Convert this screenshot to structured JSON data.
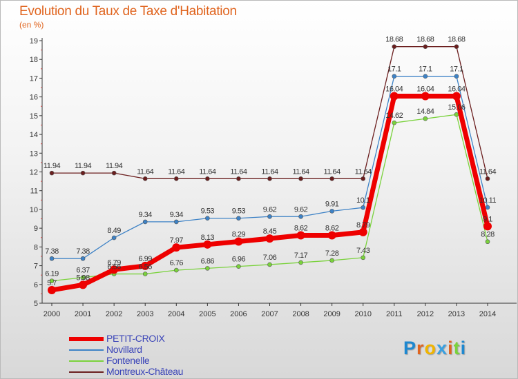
{
  "header": {
    "title": "Evolution du Taux de Taxe d'Habitation",
    "unit": "(en %)"
  },
  "colors": {
    "title": "#e0641e",
    "legend_text": "#3a44b8",
    "axis_text": "#333333"
  },
  "chart_data": {
    "type": "line",
    "title": "Evolution du Taux de Taxe d'Habitation",
    "subtitle": "(en %)",
    "xlabel": "",
    "ylabel": "",
    "x": [
      "2000",
      "2001",
      "2002",
      "2003",
      "2004",
      "2005",
      "2006",
      "2007",
      "2008",
      "2009",
      "2010",
      "2011",
      "2012",
      "2013",
      "2014"
    ],
    "ylim": [
      5,
      19
    ],
    "yticks": [
      "5",
      "6",
      "7",
      "8",
      "9",
      "10",
      "11",
      "12",
      "13",
      "14",
      "15",
      "16",
      "17",
      "18",
      "19"
    ],
    "grid": false,
    "legend_position": "bottom-left",
    "series": [
      {
        "name": "PETIT-CROIX",
        "color": "#ee0000",
        "values": [
          5.7,
          5.98,
          6.79,
          6.99,
          7.97,
          8.13,
          8.29,
          8.45,
          8.62,
          8.62,
          8.79,
          16.04,
          16.04,
          16.04,
          9.1
        ],
        "labels": [
          "5.7",
          "5.98",
          "6.79",
          "6.99",
          "7.97",
          "8.13",
          "8.29",
          "8.45",
          "8.62",
          "8.62",
          "8.79",
          "16.04",
          "16.04",
          "16.04",
          "9.1"
        ]
      },
      {
        "name": "Novillard",
        "color": "#3d82c6",
        "values": [
          7.38,
          7.38,
          8.49,
          9.34,
          9.34,
          9.53,
          9.53,
          9.62,
          9.62,
          9.91,
          10.1,
          17.1,
          17.1,
          17.1,
          10.11
        ],
        "labels": [
          "7.38",
          "7.38",
          "8.49",
          "9.34",
          "9.34",
          "9.53",
          "9.53",
          "9.62",
          "9.62",
          "9.91",
          "10.1",
          "17.1",
          "17.1",
          "17.1",
          "10.11"
        ]
      },
      {
        "name": "Fontenelle",
        "color": "#7ad23c",
        "values": [
          6.19,
          6.37,
          6.56,
          6.56,
          6.76,
          6.86,
          6.96,
          7.06,
          7.17,
          7.28,
          7.43,
          14.62,
          14.84,
          15.06,
          8.28
        ],
        "labels": [
          "6.19",
          "6.37",
          "6.56",
          "6.56",
          "6.76",
          "6.86",
          "6.96",
          "7.06",
          "7.17",
          "7.28",
          "7.43",
          "14.62",
          "14.84",
          "15.06",
          "8.28"
        ]
      },
      {
        "name": "Montreux-Château",
        "color": "#6b1e1e",
        "values": [
          11.94,
          11.94,
          11.94,
          11.64,
          11.64,
          11.64,
          11.64,
          11.64,
          11.64,
          11.64,
          11.64,
          18.68,
          18.68,
          18.68,
          11.64
        ],
        "labels": [
          "11.94",
          "11.94",
          "11.94",
          "11.64",
          "11.64",
          "11.64",
          "11.64",
          "11.64",
          "11.64",
          "11.64",
          "11.64",
          "18.68",
          "18.68",
          "18.68",
          "11.64"
        ]
      }
    ]
  },
  "legend": {
    "items": [
      {
        "label": "PETIT-CROIX",
        "color": "#ee0000",
        "thickness": 6
      },
      {
        "label": "Novillard",
        "color": "#3d82c6",
        "thickness": 2
      },
      {
        "label": "Fontenelle",
        "color": "#7ad23c",
        "thickness": 2
      },
      {
        "label": "Montreux-Château",
        "color": "#6b1e1e",
        "thickness": 2
      }
    ]
  },
  "logo": {
    "letters": [
      "P",
      "r",
      "o",
      "x",
      "i",
      "t",
      "i"
    ],
    "colors": [
      "#1e88d0",
      "#e0641e",
      "#f0b400",
      "#3aa0e0",
      "#e0641e",
      "#7ad23c",
      "#1e88d0"
    ]
  }
}
